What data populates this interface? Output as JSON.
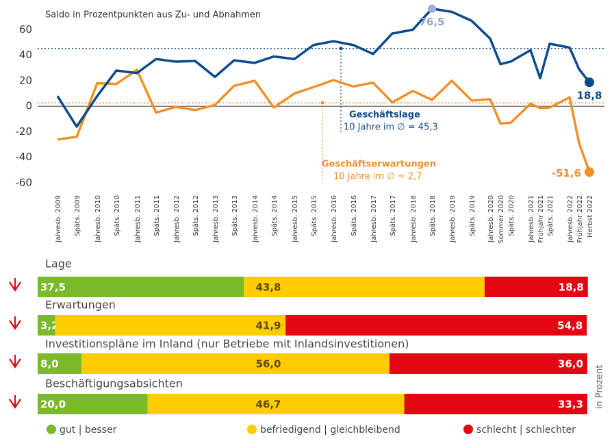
{
  "chart_data": [
    {
      "type": "line",
      "subtitle": "Saldo in Prozentpunkten aus Zu- und Abnahmen",
      "categories": [
        "Jahresb. 2009",
        "Späts. 2009",
        "Jahresb. 2010",
        "Späts. 2010",
        "Jahresb. 2011",
        "Späts. 2011",
        "Jahresb. 2012",
        "Späts. 2012",
        "Jahresb. 2013",
        "Späts. 2013",
        "Jahresb. 2014",
        "Späts. 2014",
        "Jahresb. 2015",
        "Späts. 2015",
        "Jahresb. 2016",
        "Späts. 2016",
        "Jahresb. 2017",
        "Späts. 2017",
        "Jahresb. 2018",
        "Späts. 2018",
        "Jahresb. 2019",
        "Späts. 2019",
        "Jahresb. 2020",
        "Sommer 2020",
        "Späts. 2020",
        "Jahresb. 2021",
        "Frühjahr 2021",
        "Späts. 2021",
        "Jahresb. 2022",
        "Frühjahr 2022",
        "Herbst 2022"
      ],
      "series": [
        {
          "name": "Geschäftserwartungen",
          "color": "#f0902a",
          "values": [
            -26,
            -24,
            18,
            17.5,
            28.5,
            -5,
            -0.5,
            -3,
            1,
            16,
            20,
            -1,
            10,
            15,
            20.5,
            15.5,
            18.5,
            3,
            12,
            5,
            20,
            4.5,
            5.5,
            -13.5,
            -13,
            2,
            -1.5,
            -1,
            7,
            -29,
            -51.6
          ],
          "value_labels": [
            null,
            null,
            null,
            null,
            null,
            null,
            null,
            null,
            null,
            null,
            null,
            null,
            null,
            null,
            null,
            null,
            null,
            null,
            null,
            null,
            null,
            null,
            null,
            null,
            null,
            null,
            null,
            null,
            null,
            null,
            "-51,6"
          ],
          "average": 2.7,
          "average_label": "10 Jahre im ∅ = 2,7"
        },
        {
          "name": "Geschäftslage",
          "color": "#0b4a8b",
          "values": [
            8,
            -16,
            8,
            28,
            26,
            37,
            35,
            35.5,
            23,
            36,
            34,
            39,
            37,
            48,
            51,
            48,
            41,
            57,
            60,
            76.5,
            74,
            67,
            53,
            33,
            35,
            44,
            22,
            49,
            46,
            29,
            18.8
          ],
          "value_labels": [
            null,
            null,
            null,
            null,
            null,
            null,
            null,
            null,
            null,
            null,
            null,
            null,
            null,
            null,
            null,
            null,
            null,
            null,
            null,
            "76,5",
            null,
            null,
            null,
            null,
            null,
            null,
            null,
            null,
            null,
            null,
            "18,8"
          ],
          "average": 45.3,
          "average_label": "10 Jahre im ∅ = 45,3"
        }
      ],
      "ylim": [
        -67,
        79
      ],
      "yticks": [
        60,
        40,
        20,
        0,
        -20,
        -40,
        -60
      ]
    },
    {
      "type": "stacked_bar",
      "categories": [
        "Lage",
        "Erwartungen",
        "Investitionspläne im Inland (nur Betriebe mit Inlandsinvestitionen)",
        "Beschäftigungsabsichten"
      ],
      "series": [
        {
          "name": "gut | besser",
          "color": "#7ab929",
          "values": [
            37.5,
            3.2,
            8.0,
            20.0
          ],
          "value_labels": [
            "37,5",
            "3,2",
            "8,0",
            "20,0"
          ]
        },
        {
          "name": "befriedigend | gleichbleibend",
          "color": "#ffcc00",
          "values": [
            43.8,
            41.9,
            56.0,
            46.7
          ],
          "value_labels": [
            "43,8",
            "41,9",
            "56,0",
            "46,7"
          ]
        },
        {
          "name": "schlecht | schlechter",
          "color": "#e30613",
          "values": [
            18.8,
            54.8,
            36.0,
            33.3
          ],
          "value_labels": [
            "18,8",
            "54,8",
            "36,0",
            "33,3"
          ]
        }
      ],
      "xlim": [
        0,
        100
      ],
      "axis_label": "in Prozent"
    }
  ]
}
